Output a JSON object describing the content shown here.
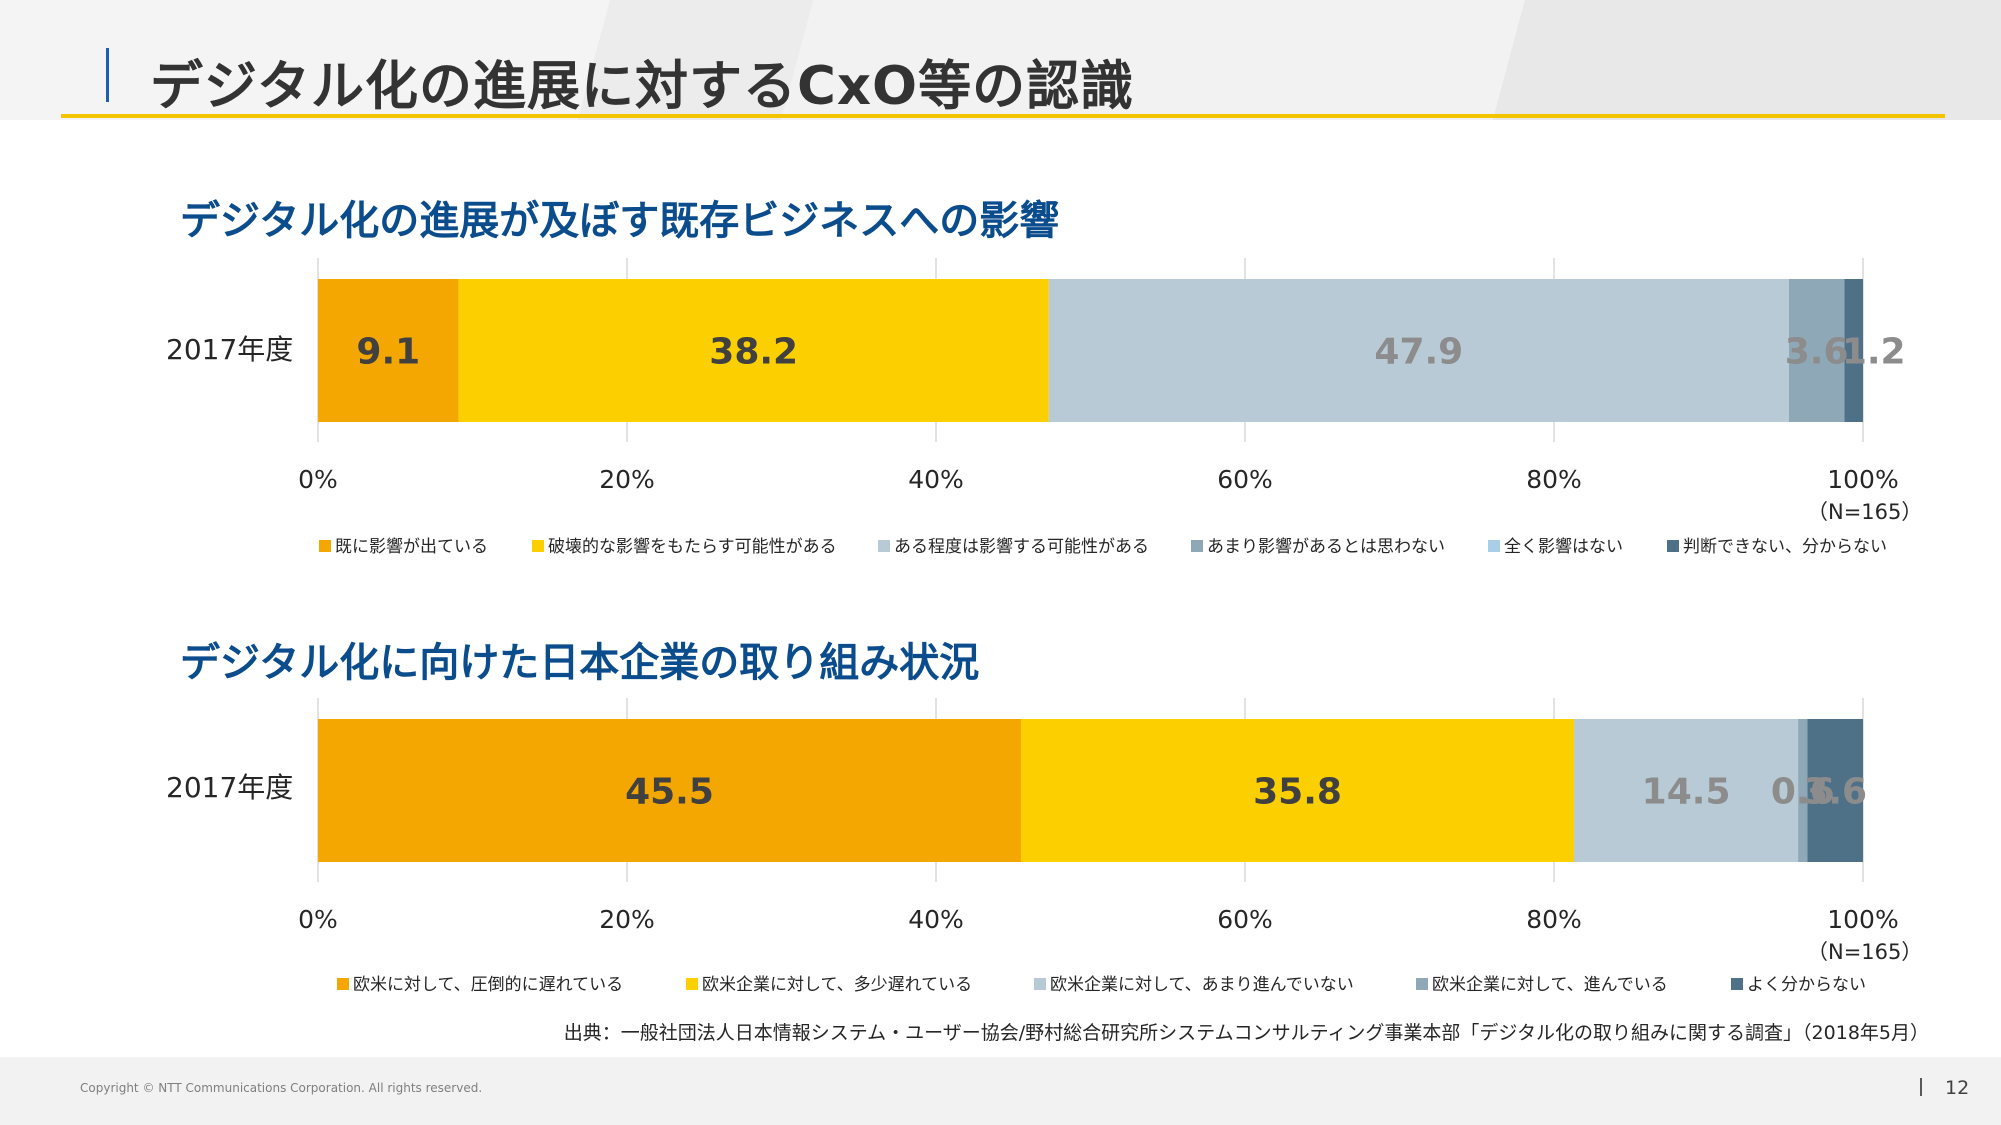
{
  "header": {
    "title": "デジタル化の進展に対するCxO等の認識"
  },
  "chart_data": [
    {
      "type": "bar",
      "orientation": "horizontal-stacked-100",
      "title": "デジタル化の進展が及ぼす既存ビジネスへの影響",
      "categories": [
        "2017年度"
      ],
      "series": [
        {
          "name": "既に影響が出ている",
          "values": [
            9.1
          ],
          "color": "#f4a700",
          "label_color": "#404040"
        },
        {
          "name": "破壊的な影響をもたらす可能性がある",
          "values": [
            38.2
          ],
          "color": "#fcd000",
          "label_color": "#404040"
        },
        {
          "name": "ある程度は影響する可能性がある",
          "values": [
            47.9
          ],
          "color": "#b8cad5",
          "label_color": "#8c8c8c"
        },
        {
          "name": "あまり影響があるとは思わない",
          "values": [
            3.6
          ],
          "color": "#8fa8b8",
          "label_color": "#8c8c8c"
        },
        {
          "name": "全く影響はない",
          "values": [
            0
          ],
          "color": "#a9cfe8",
          "label_color": "#8c8c8c"
        },
        {
          "name": "判断できない、分からない",
          "values": [
            1.2
          ],
          "color": "#4f7187",
          "label_color": "#8c8c8c"
        }
      ],
      "data_labels": [
        "9.1",
        "38.2",
        "47.9",
        "3.6",
        "1.2"
      ],
      "xlim": [
        0,
        100
      ],
      "ticks": [
        "0%",
        "20%",
        "40%",
        "60%",
        "80%",
        "100%"
      ],
      "note": "（N=165）",
      "grid": true,
      "legend": "bottom"
    },
    {
      "type": "bar",
      "orientation": "horizontal-stacked-100",
      "title": "デジタル化に向けた日本企業の取り組み状況",
      "categories": [
        "2017年度"
      ],
      "series": [
        {
          "name": "欧米に対して、圧倒的に遅れている",
          "values": [
            45.5
          ],
          "color": "#f4a700",
          "label_color": "#404040"
        },
        {
          "name": "欧米企業に対して、多少遅れている",
          "values": [
            35.8
          ],
          "color": "#fcd000",
          "label_color": "#404040"
        },
        {
          "name": "欧米企業に対して、あまり進んでいない",
          "values": [
            14.5
          ],
          "color": "#b8cad5",
          "label_color": "#8c8c8c"
        },
        {
          "name": "欧米企業に対して、進んでいる",
          "values": [
            0.6
          ],
          "color": "#8fa8b8",
          "label_color": "#8c8c8c"
        },
        {
          "name": "よく分からない",
          "values": [
            3.6
          ],
          "color": "#4f7187",
          "label_color": "#8c8c8c"
        }
      ],
      "data_labels": [
        "45.5",
        "35.8",
        "14.5",
        "0.6",
        "3.6"
      ],
      "xlim": [
        0,
        100
      ],
      "ticks": [
        "0%",
        "20%",
        "40%",
        "60%",
        "80%",
        "100%"
      ],
      "note": "（N=165）",
      "grid": true,
      "legend": "bottom"
    }
  ],
  "source": "出典：一般社団法人日本情報システム・ユーザー協会/野村総合研究所システムコンサルティング事業本部「デジタル化の取り組みに関する調査」（2018年5月）",
  "footer": {
    "copyright": "Copyright © NTT Communications Corporation. All rights reserved.",
    "page_number": "12"
  }
}
